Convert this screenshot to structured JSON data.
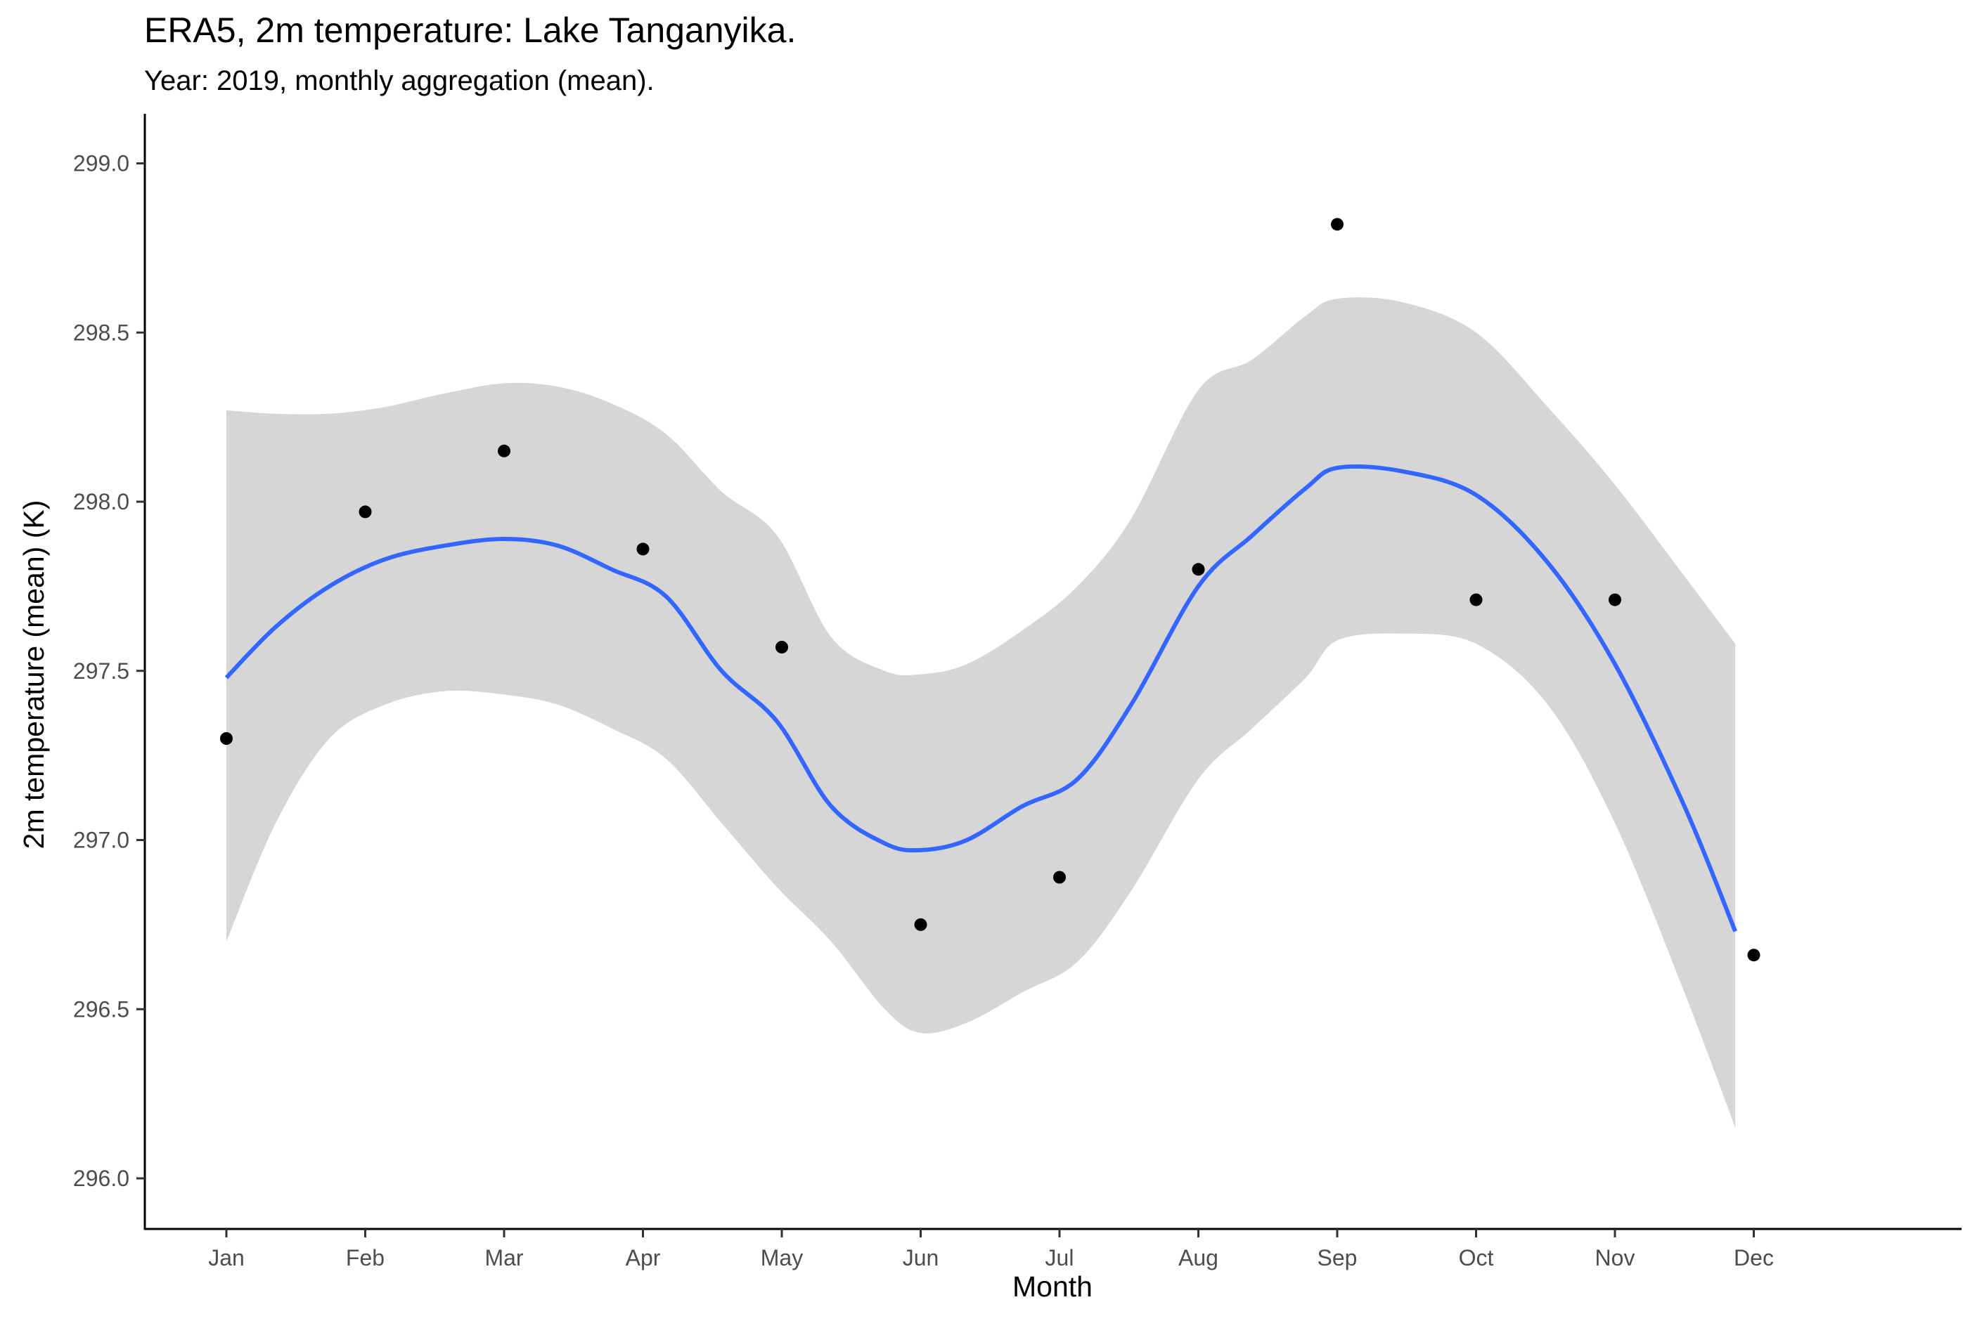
{
  "chart_data": {
    "type": "scatter",
    "title": "ERA5, 2m temperature: Lake Tanganyika.",
    "subtitle": "Year: 2019, monthly aggregation (mean).",
    "xlabel": "Month",
    "ylabel": "2m temperature (mean) (K)",
    "categories": [
      "Jan",
      "Feb",
      "Mar",
      "Apr",
      "May",
      "Jun",
      "Jul",
      "Aug",
      "Sep",
      "Oct",
      "Nov",
      "Dec"
    ],
    "x_day_of_year": [
      1,
      32,
      60,
      91,
      121,
      152,
      182,
      213,
      244,
      274,
      305,
      335
    ],
    "ylim": [
      295.86,
      299.15
    ],
    "yticks": [
      296.0,
      296.5,
      297.0,
      297.5,
      298.0,
      298.5,
      299.0
    ],
    "ytick_labels": [
      "296.0",
      "296.5",
      "297.0",
      "297.5",
      "298.0",
      "298.5",
      "299.0"
    ],
    "grid": false,
    "legend": "none",
    "points": {
      "name": "",
      "values": [
        297.3,
        297.97,
        298.15,
        297.86,
        297.57,
        296.75,
        296.89,
        297.8,
        298.82,
        297.71,
        297.71,
        296.66
      ],
      "color": "#000000"
    },
    "smooth": {
      "method": "loess",
      "color": "#3366ff",
      "band_color": "#d6d6d6",
      "x_day_of_year": [
        1,
        12,
        24,
        36,
        48,
        60,
        72,
        84,
        96,
        108,
        120,
        132,
        144,
        152,
        162,
        174,
        186,
        198,
        213,
        225,
        237,
        244,
        258,
        274,
        290,
        305,
        320,
        331
      ],
      "fit": [
        297.48,
        297.63,
        297.75,
        297.83,
        297.87,
        297.89,
        297.87,
        297.8,
        297.72,
        297.5,
        297.35,
        297.1,
        296.99,
        296.97,
        297.0,
        297.1,
        297.18,
        297.4,
        297.75,
        297.9,
        298.04,
        298.1,
        298.09,
        298.02,
        297.82,
        297.52,
        297.1,
        296.73
      ],
      "upper": [
        298.27,
        298.26,
        298.26,
        298.28,
        298.32,
        298.35,
        298.34,
        298.29,
        298.2,
        298.03,
        297.9,
        297.6,
        297.5,
        297.49,
        297.52,
        297.62,
        297.75,
        297.95,
        298.33,
        298.42,
        298.55,
        298.6,
        298.59,
        298.5,
        298.28,
        298.05,
        297.78,
        297.58
      ],
      "lower": [
        296.7,
        297.05,
        297.3,
        297.4,
        297.44,
        297.43,
        297.4,
        297.33,
        297.24,
        297.05,
        296.86,
        296.7,
        296.5,
        296.43,
        296.46,
        296.55,
        296.64,
        296.85,
        297.18,
        297.33,
        297.48,
        297.59,
        297.61,
        297.58,
        297.4,
        297.05,
        296.55,
        296.15
      ]
    }
  }
}
